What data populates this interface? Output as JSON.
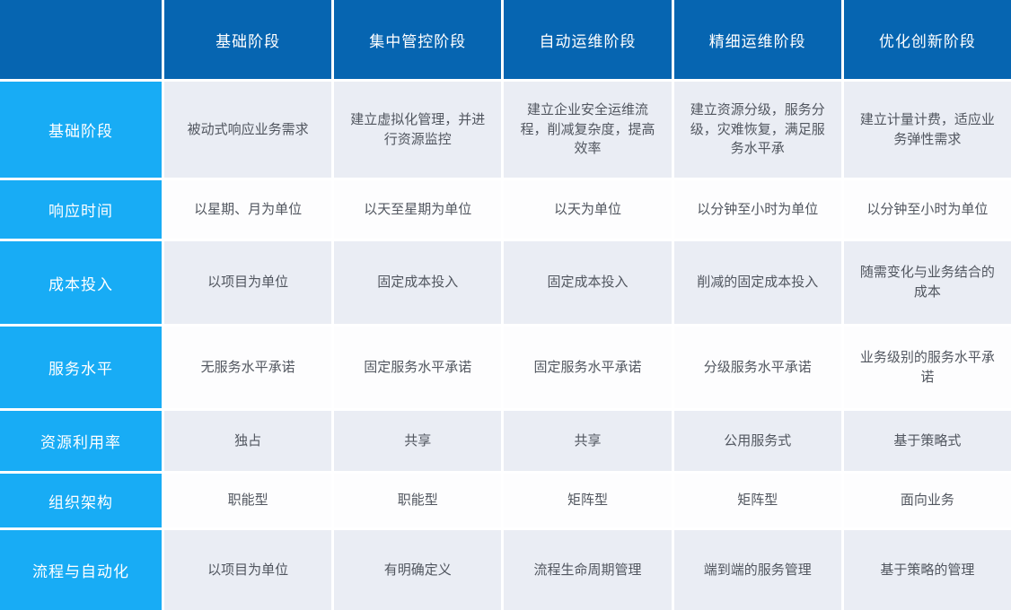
{
  "colors": {
    "header-bg": "#0665b1",
    "rowhead-bg": "#18acf5",
    "shade-bg": "#eaedf4",
    "row-bg": "#fdfdfe",
    "header-text": "#ffffff",
    "body-text": "#51565f"
  },
  "chart_data": {
    "type": "table",
    "columns": [
      "",
      "基础阶段",
      "集中管控阶段",
      "自动运维阶段",
      "精细运维阶段",
      "优化创新阶段"
    ],
    "rows": [
      {
        "header": "基础阶段",
        "cells": [
          "被动式响应业务需求",
          "建立虚拟化管理，并进行资源监控",
          "建立企业安全运维流程，削减复杂度，提高效率",
          "建立资源分级，服务分级，灾难恢复，满足服务水平承",
          "建立计量计费，适应业务弹性需求"
        ]
      },
      {
        "header": "响应时间",
        "cells": [
          "以星期、月为单位",
          "以天至星期为单位",
          "以天为单位",
          "以分钟至小时为单位",
          "以分钟至小时为单位"
        ]
      },
      {
        "header": "成本投入",
        "cells": [
          "以项目为单位",
          "固定成本投入",
          "固定成本投入",
          "削减的固定成本投入",
          "随需变化与业务结合的成本"
        ]
      },
      {
        "header": "服务水平",
        "cells": [
          "无服务水平承诺",
          "固定服务水平承诺",
          "固定服务水平承诺",
          "分级服务水平承诺",
          "业务级别的服务水平承诺"
        ]
      },
      {
        "header": "资源利用率",
        "cells": [
          "独占",
          "共享",
          "共享",
          "公用服务式",
          "基于策略式"
        ]
      },
      {
        "header": "组织架构",
        "cells": [
          "职能型",
          "职能型",
          "矩阵型",
          "矩阵型",
          "面向业务"
        ]
      },
      {
        "header": "流程与自动化",
        "cells": [
          "以项目为单位",
          "有明确定义",
          "流程生命周期管理",
          "端到端的服务管理",
          "基于策略的管理"
        ]
      }
    ]
  }
}
